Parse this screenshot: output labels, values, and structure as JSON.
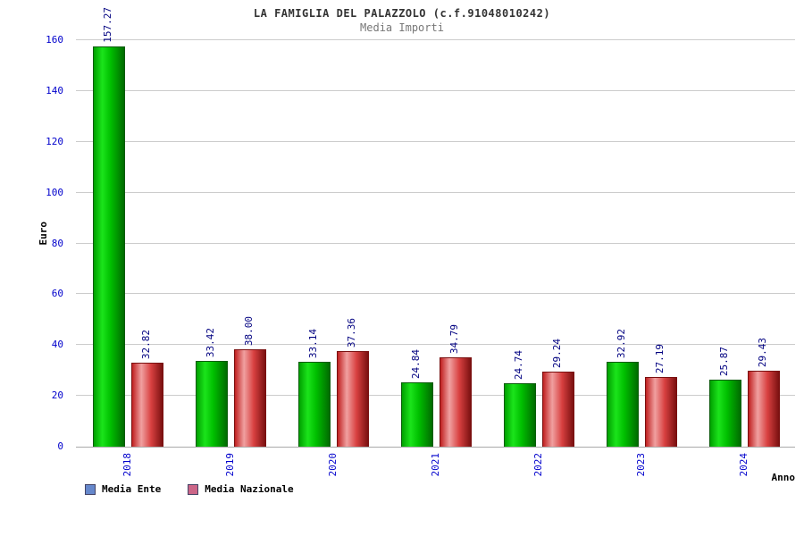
{
  "header": {
    "title": "LA FAMIGLIA DEL PALAZZOLO (c.f.91048010242)",
    "subtitle": "Media Importi"
  },
  "axes": {
    "y_title": "Euro",
    "x_title": "Anno"
  },
  "legend": [
    {
      "label": "Media Ente",
      "swatch": "#6688cc"
    },
    {
      "label": "Media Nazionale",
      "swatch": "#cc6688"
    }
  ],
  "colors": {
    "tick_label": "#0000cc",
    "value_label": "#000080",
    "gridline": "#cccccc",
    "series_ente": "#00c000",
    "series_nazionale": "#d84040"
  },
  "chart_data": {
    "type": "bar",
    "title": "LA FAMIGLIA DEL PALAZZOLO (c.f.91048010242)",
    "subtitle": "Media Importi",
    "xlabel": "Anno",
    "ylabel": "Euro",
    "ylim": [
      0,
      160
    ],
    "ytick_step": 20,
    "grid": true,
    "legend_position": "bottom-left",
    "categories": [
      "2018",
      "2019",
      "2020",
      "2021",
      "2022",
      "2023",
      "2024"
    ],
    "series": [
      {
        "name": "Media Ente",
        "values": [
          157.27,
          33.42,
          33.14,
          24.84,
          24.74,
          32.92,
          25.87
        ]
      },
      {
        "name": "Media Nazionale",
        "values": [
          32.82,
          38.0,
          37.36,
          34.79,
          29.24,
          27.19,
          29.43
        ]
      }
    ]
  }
}
